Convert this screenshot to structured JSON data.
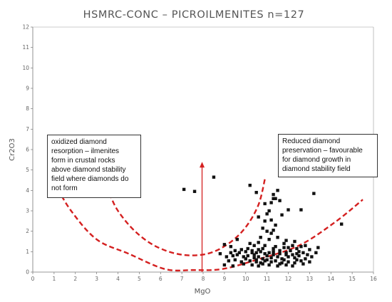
{
  "chart_data": {
    "type": "scatter",
    "title": "HSMRC-CONC  –  PICROILMENITES  n=127",
    "xlabel": "MgO",
    "ylabel": "Cr2O3",
    "xlim": [
      0,
      16
    ],
    "ylim": [
      0,
      12
    ],
    "x_ticks": [
      "0",
      "1",
      "2",
      "3",
      "4",
      "5",
      "6",
      "7",
      "8",
      "9",
      "10",
      "11",
      "12",
      "13",
      "14",
      "15",
      "16"
    ],
    "y_ticks": [
      "0",
      "1",
      "2",
      "3",
      "4",
      "5",
      "6",
      "7",
      "8",
      "9",
      "10",
      "11",
      "12"
    ],
    "grid": false,
    "marker_color": "#111111",
    "curve_color": "#d42020",
    "points": [
      [
        7.1,
        4.05
      ],
      [
        7.6,
        3.95
      ],
      [
        8.5,
        4.65
      ],
      [
        10.2,
        4.25
      ],
      [
        10.5,
        3.9
      ],
      [
        11.3,
        3.6
      ],
      [
        11.2,
        3.4
      ],
      [
        11.1,
        3.0
      ],
      [
        11.4,
        3.6
      ],
      [
        11.5,
        4.0
      ],
      [
        11.3,
        3.8
      ],
      [
        10.9,
        3.35
      ],
      [
        11.0,
        2.85
      ],
      [
        11.6,
        3.5
      ],
      [
        10.6,
        2.7
      ],
      [
        10.9,
        2.5
      ],
      [
        11.2,
        2.55
      ],
      [
        11.4,
        2.3
      ],
      [
        11.7,
        2.8
      ],
      [
        12.0,
        3.05
      ],
      [
        12.6,
        3.05
      ],
      [
        13.2,
        3.85
      ],
      [
        10.8,
        2.15
      ],
      [
        11.0,
        2.0
      ],
      [
        11.2,
        1.9
      ],
      [
        11.3,
        2.05
      ],
      [
        10.7,
        1.7
      ],
      [
        11.1,
        1.6
      ],
      [
        11.5,
        1.7
      ],
      [
        11.9,
        1.55
      ],
      [
        12.3,
        1.5
      ],
      [
        9.6,
        1.6
      ],
      [
        10.2,
        1.4
      ],
      [
        10.4,
        1.3
      ],
      [
        10.6,
        1.45
      ],
      [
        11.4,
        1.25
      ],
      [
        11.8,
        1.2
      ],
      [
        12.2,
        1.3
      ],
      [
        12.6,
        1.25
      ],
      [
        13.0,
        1.1
      ],
      [
        13.4,
        1.2
      ],
      [
        9.0,
        1.35
      ],
      [
        9.3,
        1.25
      ],
      [
        9.8,
        1.1
      ],
      [
        10.0,
        1.0
      ],
      [
        10.3,
        1.05
      ],
      [
        10.5,
        0.95
      ],
      [
        10.7,
        1.0
      ],
      [
        10.9,
        0.9
      ],
      [
        11.1,
        0.95
      ],
      [
        11.3,
        1.0
      ],
      [
        11.6,
        0.9
      ],
      [
        11.9,
        0.95
      ],
      [
        12.1,
        1.05
      ],
      [
        12.4,
        0.9
      ],
      [
        12.7,
        0.95
      ],
      [
        12.9,
        0.85
      ],
      [
        8.8,
        0.9
      ],
      [
        9.1,
        0.75
      ],
      [
        9.4,
        0.8
      ],
      [
        9.6,
        0.85
      ],
      [
        9.9,
        0.75
      ],
      [
        10.1,
        0.8
      ],
      [
        10.4,
        0.7
      ],
      [
        10.6,
        0.75
      ],
      [
        10.8,
        0.65
      ],
      [
        11.0,
        0.8
      ],
      [
        11.2,
        0.7
      ],
      [
        11.5,
        0.75
      ],
      [
        11.7,
        0.65
      ],
      [
        12.0,
        0.75
      ],
      [
        12.3,
        0.7
      ],
      [
        12.5,
        0.8
      ],
      [
        12.8,
        0.65
      ],
      [
        13.1,
        0.75
      ],
      [
        9.2,
        0.55
      ],
      [
        9.5,
        0.6
      ],
      [
        9.8,
        0.5
      ],
      [
        10.2,
        0.55
      ],
      [
        10.5,
        0.5
      ],
      [
        10.7,
        0.45
      ],
      [
        10.9,
        0.55
      ],
      [
        11.2,
        0.5
      ],
      [
        11.4,
        0.55
      ],
      [
        11.7,
        0.45
      ],
      [
        12.0,
        0.5
      ],
      [
        12.3,
        0.45
      ],
      [
        12.6,
        0.55
      ],
      [
        9.0,
        0.35
      ],
      [
        9.4,
        0.3
      ],
      [
        10.3,
        0.35
      ],
      [
        10.6,
        0.3
      ],
      [
        11.1,
        0.35
      ],
      [
        11.5,
        0.3
      ],
      [
        12.2,
        0.3
      ],
      [
        10.0,
        0.65
      ],
      [
        10.8,
        1.15
      ],
      [
        11.6,
        1.05
      ],
      [
        9.7,
        0.95
      ],
      [
        10.4,
        0.85
      ],
      [
        11.9,
        0.85
      ],
      [
        12.5,
        1.0
      ],
      [
        13.3,
        0.95
      ],
      [
        14.5,
        2.35
      ],
      [
        10.1,
        1.15
      ],
      [
        10.9,
        1.3
      ],
      [
        11.8,
        1.4
      ],
      [
        12.4,
        1.15
      ],
      [
        9.5,
        1.05
      ],
      [
        10.6,
        1.1
      ],
      [
        11.3,
        1.15
      ],
      [
        12.0,
        1.2
      ],
      [
        12.8,
        1.3
      ],
      [
        10.3,
        0.95
      ],
      [
        11.0,
        0.6
      ],
      [
        11.8,
        0.6
      ],
      [
        12.7,
        0.4
      ],
      [
        9.3,
        0.95
      ],
      [
        10.8,
        0.4
      ],
      [
        11.6,
        0.4
      ],
      [
        12.4,
        0.6
      ],
      [
        13.0,
        0.5
      ],
      [
        10.5,
        0.6
      ],
      [
        11.3,
        0.85
      ],
      [
        12.2,
        0.85
      ],
      [
        11.9,
        0.35
      ],
      [
        9.9,
        0.4
      ]
    ],
    "curves": [
      {
        "name": "",
        "points": [
          [
            3.6,
            3.85
          ],
          [
            4.0,
            3.0
          ],
          [
            4.8,
            2.0
          ],
          [
            5.8,
            1.25
          ],
          [
            7.0,
            0.85
          ],
          [
            8.2,
            0.9
          ],
          [
            9.2,
            1.4
          ],
          [
            10.0,
            2.2
          ],
          [
            10.6,
            3.3
          ],
          [
            10.9,
            4.55
          ]
        ]
      },
      {
        "name": "",
        "points": [
          [
            1.0,
            4.4
          ],
          [
            1.8,
            3.0
          ],
          [
            3.0,
            1.6
          ],
          [
            4.5,
            0.9
          ],
          [
            6.2,
            0.15
          ],
          [
            7.5,
            0.1
          ],
          [
            8.9,
            0.15
          ],
          [
            10.5,
            0.6
          ],
          [
            12.5,
            1.3
          ],
          [
            14.2,
            2.45
          ],
          [
            15.5,
            3.55
          ]
        ]
      }
    ],
    "arrow": {
      "x": 7.95,
      "y_from": 0.0,
      "y_to": 5.4
    },
    "annotations": [
      {
        "lines": [
          "oxidized diamond",
          "resorption – ilmenites",
          "form in crustal rocks",
          "above diamond stability",
          "field where diamonds do",
          "not form"
        ]
      },
      {
        "lines": [
          "Reduced diamond",
          "preservation – favourable",
          "for diamond growth in",
          "diamond stability field"
        ]
      }
    ]
  }
}
